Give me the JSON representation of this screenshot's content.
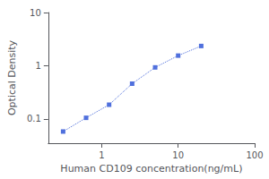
{
  "chart_data": {
    "type": "line",
    "x": [
      0.313,
      0.625,
      1.25,
      2.5,
      5.0,
      10.0,
      20.0
    ],
    "values": [
      0.058,
      0.105,
      0.185,
      0.46,
      0.93,
      1.55,
      2.35
    ],
    "xlabel": "Human CD109 concentration(ng/mL)",
    "ylabel": "Optical Density",
    "xlim": [
      0.2,
      100
    ],
    "ylim": [
      0.035,
      10
    ],
    "xticks": [
      1,
      10,
      100
    ],
    "yticks": [
      0.1,
      1,
      10
    ],
    "log": true,
    "grid": false,
    "marker": "square",
    "line_style": "dotted"
  }
}
